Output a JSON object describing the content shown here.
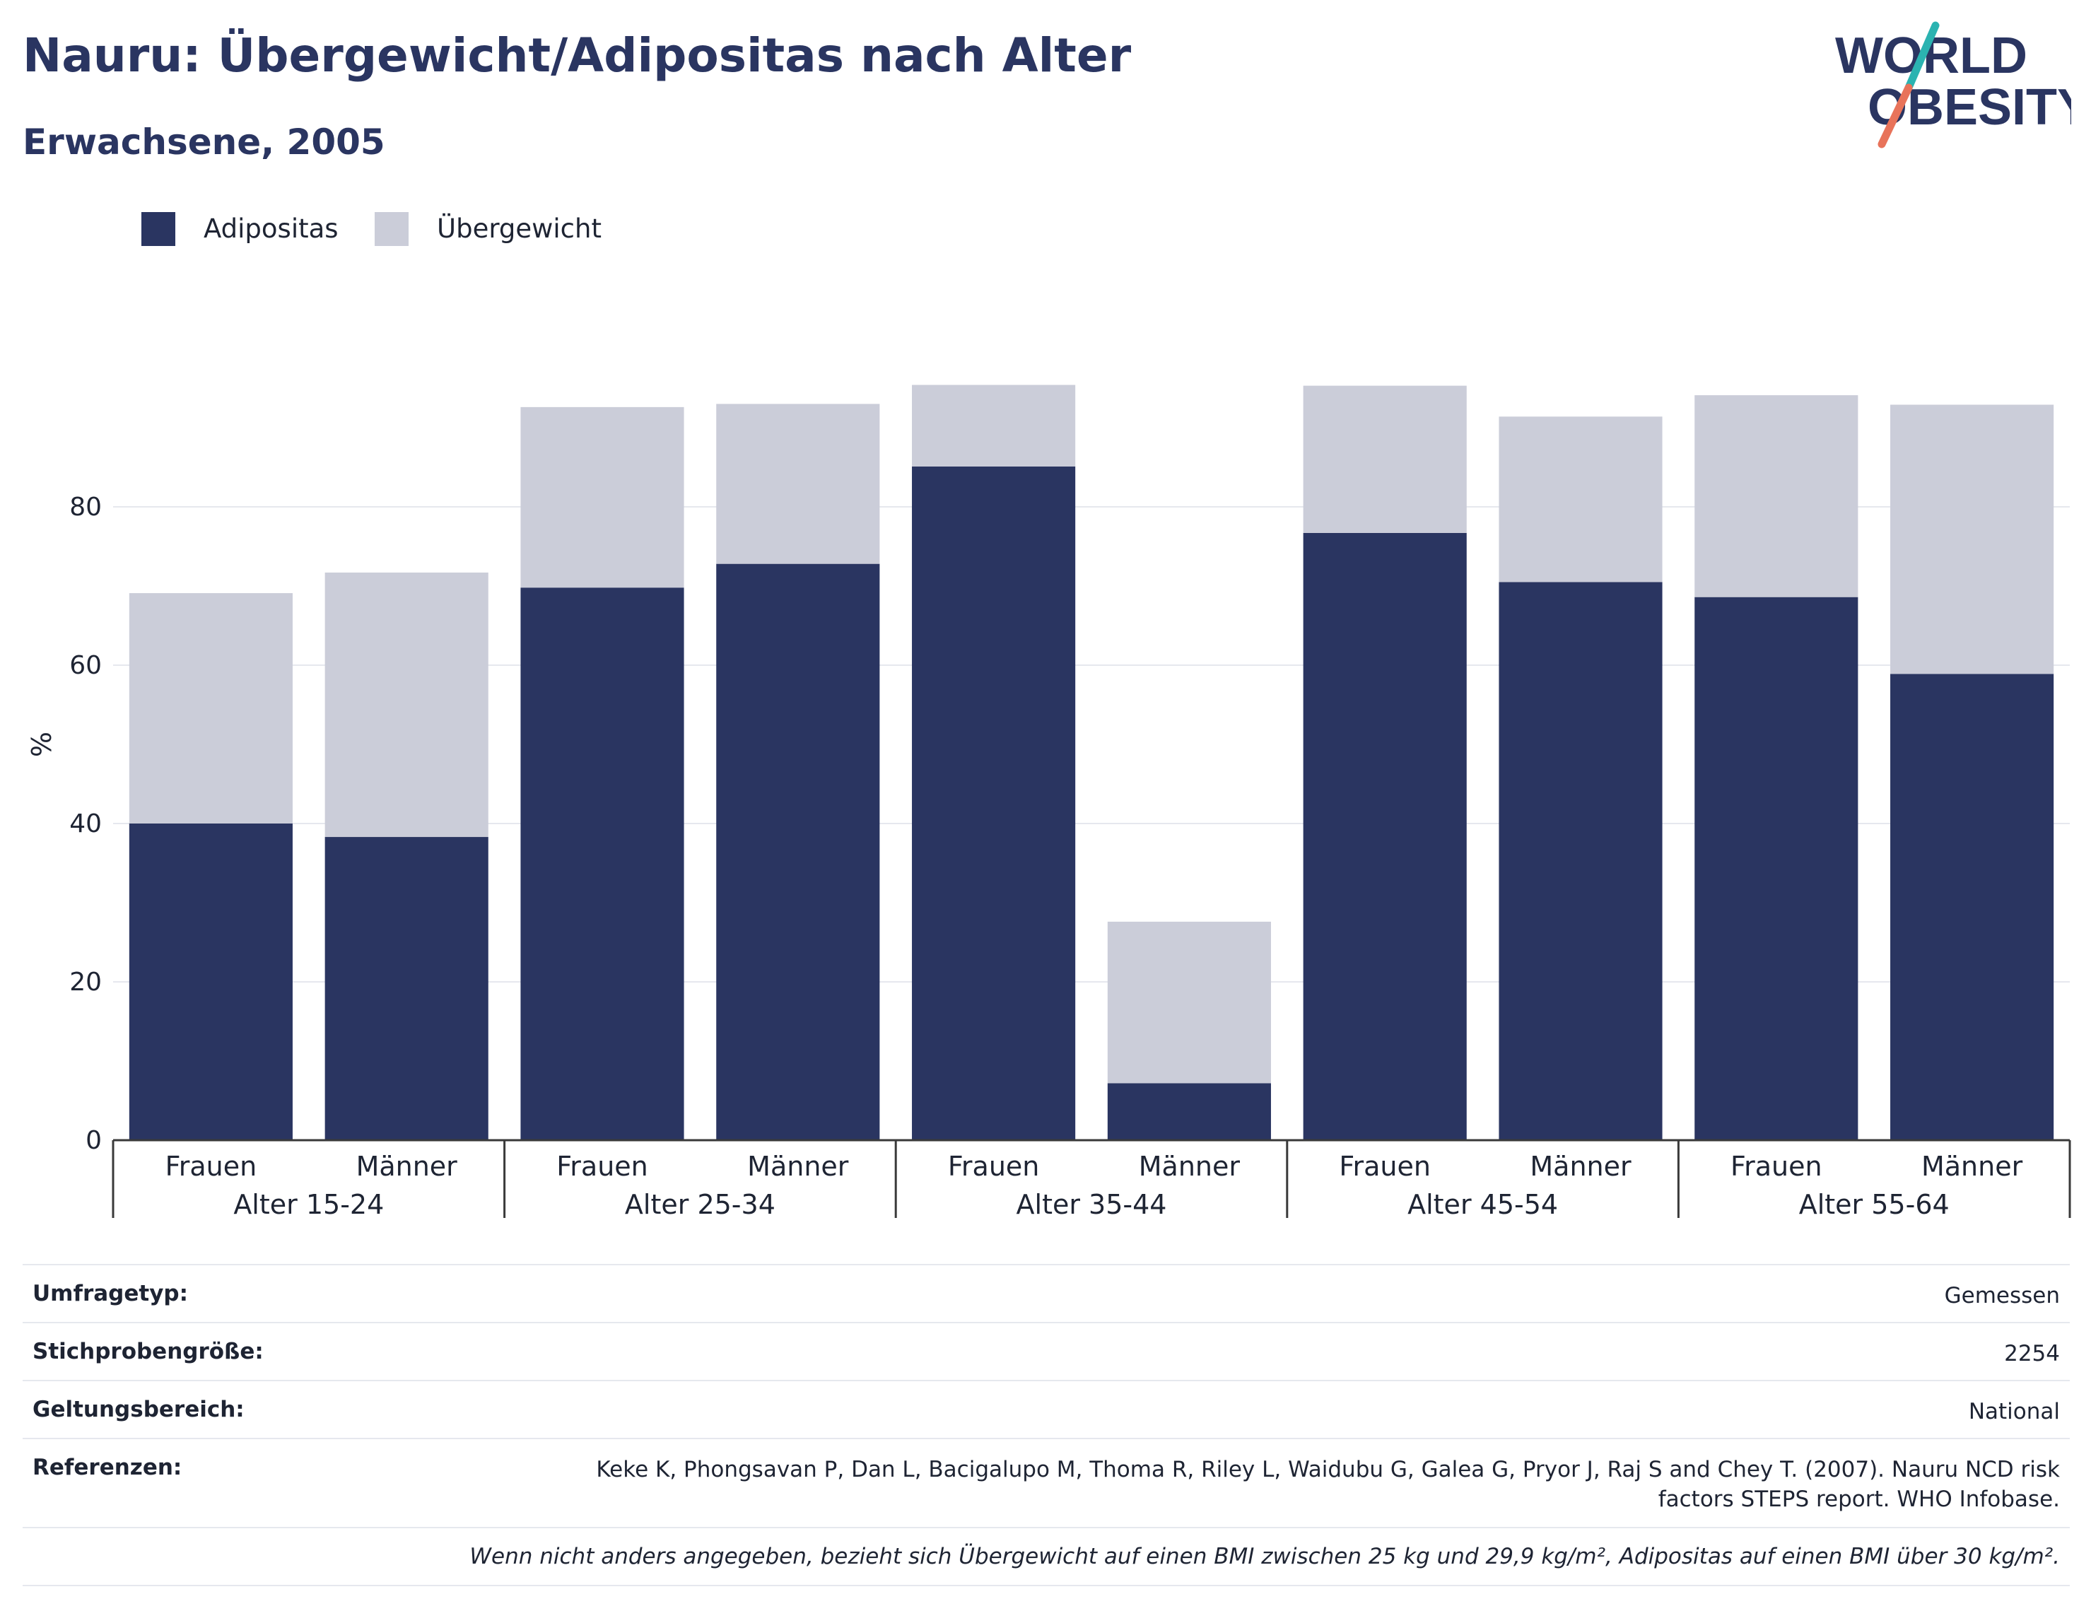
{
  "header": {
    "title": "Nauru: Übergewicht/Adipositas nach Alter",
    "subtitle": "Erwachsene, 2005"
  },
  "logo": {
    "line1": "WORLD",
    "line2": "OBESITY",
    "colors": {
      "text": "#2a3561",
      "slash_top": "#2bb3b1",
      "slash_bottom": "#e8735a"
    }
  },
  "colors": {
    "adipositas": "#2a3561",
    "uebergewicht": "#cbcdd9",
    "axis": "#3a3a3a",
    "grid": "#e6e8ee"
  },
  "chart_data": {
    "type": "bar",
    "stacked": true,
    "ylabel": "%",
    "ylim": [
      0,
      100
    ],
    "yticks": [
      0,
      20,
      40,
      60,
      80
    ],
    "grid": true,
    "legend_position": "top-left",
    "groups": [
      {
        "label": "Alter 15-24",
        "categories": [
          "Frauen",
          "Männer"
        ]
      },
      {
        "label": "Alter 25-34",
        "categories": [
          "Frauen",
          "Männer"
        ]
      },
      {
        "label": "Alter 35-44",
        "categories": [
          "Frauen",
          "Männer"
        ]
      },
      {
        "label": "Alter 45-54",
        "categories": [
          "Frauen",
          "Männer"
        ]
      },
      {
        "label": "Alter 55-64",
        "categories": [
          "Frauen",
          "Männer"
        ]
      }
    ],
    "series": [
      {
        "name": "Adipositas",
        "values": [
          40.0,
          38.3,
          69.8,
          72.8,
          85.1,
          7.2,
          76.7,
          70.5,
          68.6,
          58.9
        ]
      },
      {
        "name": "Übergewicht",
        "values": [
          29.1,
          33.4,
          22.8,
          20.2,
          10.3,
          20.4,
          18.6,
          20.9,
          25.5,
          34.0
        ]
      }
    ]
  },
  "info": {
    "rows": [
      {
        "label": "Umfragetyp:",
        "value": "Gemessen"
      },
      {
        "label": "Stichprobengröße:",
        "value": "2254"
      },
      {
        "label": "Geltungsbereich:",
        "value": "National"
      },
      {
        "label": "Referenzen:",
        "value": "Keke K, Phongsavan P, Dan L, Bacigalupo M, Thoma R, Riley L, Waidubu G, Galea G, Pryor J, Raj S and Chey T. (2007). Nauru NCD risk factors STEPS report. WHO Infobase."
      }
    ],
    "note": "Wenn nicht anders angegeben, bezieht sich Übergewicht auf einen BMI zwischen 25 kg und 29,9 kg/m², Adipositas auf einen BMI über 30 kg/m²."
  }
}
